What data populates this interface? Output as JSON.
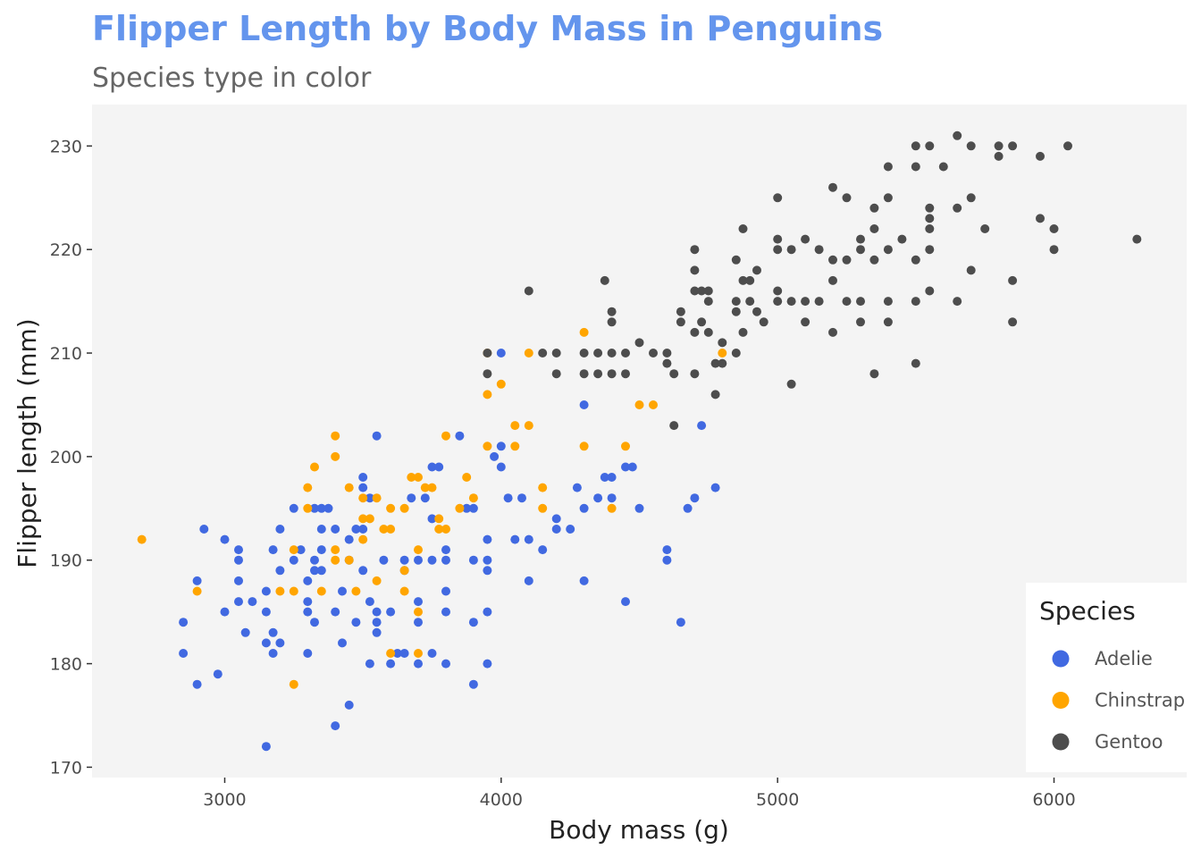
{
  "chart_data": {
    "type": "scatter",
    "title": "Flipper Length by Body Mass in Penguins",
    "subtitle": "Species type in color",
    "xlabel": "Body mass (g)",
    "ylabel": "Flipper length (mm)",
    "xlim": [
      2520,
      6480
    ],
    "ylim": [
      169,
      234
    ],
    "xticks": [
      3000,
      4000,
      5000,
      6000
    ],
    "yticks": [
      170,
      180,
      190,
      200,
      210,
      220,
      230
    ],
    "grid": false,
    "panel_background": "#f4f4f4",
    "legend": {
      "title": "Species",
      "position": "right-inside-bottom"
    },
    "series": [
      {
        "name": "Adelie",
        "color": "#4169E1",
        "points": [
          [
            2850,
            184
          ],
          [
            2850,
            181
          ],
          [
            2900,
            188
          ],
          [
            2900,
            178
          ],
          [
            2925,
            193
          ],
          [
            2975,
            179
          ],
          [
            3000,
            192
          ],
          [
            3000,
            185
          ],
          [
            3050,
            191
          ],
          [
            3050,
            190
          ],
          [
            3050,
            188
          ],
          [
            3050,
            186
          ],
          [
            3075,
            183
          ],
          [
            3100,
            186
          ],
          [
            3150,
            187
          ],
          [
            3150,
            185
          ],
          [
            3150,
            182
          ],
          [
            3150,
            172
          ],
          [
            3175,
            191
          ],
          [
            3175,
            183
          ],
          [
            3175,
            181
          ],
          [
            3200,
            193
          ],
          [
            3200,
            189
          ],
          [
            3200,
            182
          ],
          [
            3250,
            195
          ],
          [
            3250,
            190
          ],
          [
            3275,
            191
          ],
          [
            3300,
            188
          ],
          [
            3300,
            186
          ],
          [
            3300,
            185
          ],
          [
            3300,
            181
          ],
          [
            3325,
            190
          ],
          [
            3325,
            189
          ],
          [
            3325,
            184
          ],
          [
            3325,
            195
          ],
          [
            3350,
            195
          ],
          [
            3350,
            193
          ],
          [
            3350,
            191
          ],
          [
            3350,
            189
          ],
          [
            3375,
            195
          ],
          [
            3400,
            193
          ],
          [
            3400,
            185
          ],
          [
            3400,
            174
          ],
          [
            3425,
            187
          ],
          [
            3425,
            182
          ],
          [
            3450,
            192
          ],
          [
            3450,
            190
          ],
          [
            3450,
            176
          ],
          [
            3475,
            193
          ],
          [
            3475,
            184
          ],
          [
            3500,
            198
          ],
          [
            3500,
            197
          ],
          [
            3500,
            193
          ],
          [
            3500,
            189
          ],
          [
            3525,
            196
          ],
          [
            3525,
            186
          ],
          [
            3525,
            180
          ],
          [
            3550,
            202
          ],
          [
            3550,
            184
          ],
          [
            3550,
            183
          ],
          [
            3550,
            185
          ],
          [
            3575,
            190
          ],
          [
            3600,
            185
          ],
          [
            3600,
            180
          ],
          [
            3625,
            181
          ],
          [
            3650,
            190
          ],
          [
            3650,
            189
          ],
          [
            3650,
            181
          ],
          [
            3675,
            196
          ],
          [
            3700,
            190
          ],
          [
            3700,
            186
          ],
          [
            3700,
            184
          ],
          [
            3700,
            180
          ],
          [
            3725,
            196
          ],
          [
            3750,
            199
          ],
          [
            3750,
            194
          ],
          [
            3750,
            190
          ],
          [
            3750,
            181
          ],
          [
            3775,
            199
          ],
          [
            3800,
            191
          ],
          [
            3800,
            190
          ],
          [
            3800,
            187
          ],
          [
            3800,
            185
          ],
          [
            3800,
            180
          ],
          [
            3850,
            202
          ],
          [
            3875,
            195
          ],
          [
            3900,
            195
          ],
          [
            3900,
            190
          ],
          [
            3900,
            184
          ],
          [
            3900,
            178
          ],
          [
            3950,
            192
          ],
          [
            3950,
            190
          ],
          [
            3950,
            189
          ],
          [
            3950,
            185
          ],
          [
            3950,
            180
          ],
          [
            3975,
            200
          ],
          [
            4000,
            210
          ],
          [
            4000,
            201
          ],
          [
            4000,
            199
          ],
          [
            4025,
            196
          ],
          [
            4050,
            192
          ],
          [
            4075,
            196
          ],
          [
            4100,
            192
          ],
          [
            4100,
            188
          ],
          [
            4150,
            191
          ],
          [
            4200,
            194
          ],
          [
            4200,
            193
          ],
          [
            4250,
            193
          ],
          [
            4275,
            197
          ],
          [
            4300,
            205
          ],
          [
            4300,
            195
          ],
          [
            4300,
            188
          ],
          [
            4350,
            196
          ],
          [
            4375,
            198
          ],
          [
            4400,
            198
          ],
          [
            4400,
            196
          ],
          [
            4450,
            199
          ],
          [
            4450,
            186
          ],
          [
            4475,
            199
          ],
          [
            4500,
            195
          ],
          [
            4600,
            191
          ],
          [
            4600,
            190
          ],
          [
            4650,
            184
          ],
          [
            4675,
            195
          ],
          [
            4700,
            196
          ],
          [
            4725,
            203
          ],
          [
            4775,
            197
          ]
        ]
      },
      {
        "name": "Chinstrap",
        "color": "#FFA500",
        "points": [
          [
            2700,
            192
          ],
          [
            2900,
            187
          ],
          [
            3200,
            187
          ],
          [
            3250,
            191
          ],
          [
            3250,
            187
          ],
          [
            3250,
            178
          ],
          [
            3300,
            197
          ],
          [
            3300,
            195
          ],
          [
            3325,
            199
          ],
          [
            3350,
            187
          ],
          [
            3400,
            202
          ],
          [
            3400,
            200
          ],
          [
            3400,
            191
          ],
          [
            3400,
            190
          ],
          [
            3450,
            197
          ],
          [
            3450,
            190
          ],
          [
            3475,
            187
          ],
          [
            3500,
            196
          ],
          [
            3500,
            194
          ],
          [
            3500,
            192
          ],
          [
            3525,
            194
          ],
          [
            3550,
            188
          ],
          [
            3550,
            196
          ],
          [
            3575,
            193
          ],
          [
            3600,
            195
          ],
          [
            3600,
            193
          ],
          [
            3600,
            181
          ],
          [
            3650,
            195
          ],
          [
            3650,
            189
          ],
          [
            3650,
            187
          ],
          [
            3675,
            198
          ],
          [
            3700,
            198
          ],
          [
            3700,
            191
          ],
          [
            3700,
            185
          ],
          [
            3700,
            181
          ],
          [
            3725,
            197
          ],
          [
            3750,
            197
          ],
          [
            3775,
            194
          ],
          [
            3775,
            193
          ],
          [
            3800,
            202
          ],
          [
            3800,
            193
          ],
          [
            3850,
            195
          ],
          [
            3875,
            198
          ],
          [
            3900,
            196
          ],
          [
            3950,
            210
          ],
          [
            3950,
            206
          ],
          [
            3950,
            201
          ],
          [
            4000,
            207
          ],
          [
            4050,
            203
          ],
          [
            4050,
            201
          ],
          [
            4100,
            210
          ],
          [
            4100,
            203
          ],
          [
            4150,
            197
          ],
          [
            4150,
            195
          ],
          [
            4300,
            212
          ],
          [
            4300,
            201
          ],
          [
            4400,
            195
          ],
          [
            4450,
            201
          ],
          [
            4500,
            205
          ],
          [
            4550,
            205
          ],
          [
            4800,
            210
          ]
        ]
      },
      {
        "name": "Gentoo",
        "color": "#4D4D4D",
        "points": [
          [
            3950,
            210
          ],
          [
            3950,
            208
          ],
          [
            4100,
            216
          ],
          [
            4150,
            210
          ],
          [
            4200,
            210
          ],
          [
            4200,
            208
          ],
          [
            4300,
            210
          ],
          [
            4300,
            208
          ],
          [
            4350,
            210
          ],
          [
            4350,
            208
          ],
          [
            4375,
            217
          ],
          [
            4400,
            214
          ],
          [
            4400,
            213
          ],
          [
            4400,
            210
          ],
          [
            4400,
            208
          ],
          [
            4450,
            210
          ],
          [
            4450,
            208
          ],
          [
            4500,
            211
          ],
          [
            4550,
            210
          ],
          [
            4600,
            210
          ],
          [
            4600,
            209
          ],
          [
            4625,
            208
          ],
          [
            4625,
            203
          ],
          [
            4650,
            213
          ],
          [
            4650,
            214
          ],
          [
            4700,
            212
          ],
          [
            4700,
            208
          ],
          [
            4700,
            216
          ],
          [
            4700,
            218
          ],
          [
            4700,
            220
          ],
          [
            4725,
            216
          ],
          [
            4725,
            213
          ],
          [
            4750,
            216
          ],
          [
            4750,
            215
          ],
          [
            4750,
            212
          ],
          [
            4775,
            209
          ],
          [
            4775,
            206
          ],
          [
            4800,
            211
          ],
          [
            4800,
            209
          ],
          [
            4850,
            219
          ],
          [
            4850,
            215
          ],
          [
            4850,
            214
          ],
          [
            4850,
            210
          ],
          [
            4875,
            222
          ],
          [
            4875,
            217
          ],
          [
            4875,
            212
          ],
          [
            4900,
            217
          ],
          [
            4900,
            215
          ],
          [
            4925,
            218
          ],
          [
            4925,
            214
          ],
          [
            4950,
            213
          ],
          [
            5000,
            225
          ],
          [
            5000,
            221
          ],
          [
            5000,
            220
          ],
          [
            5000,
            216
          ],
          [
            5000,
            215
          ],
          [
            5050,
            220
          ],
          [
            5050,
            215
          ],
          [
            5050,
            207
          ],
          [
            5100,
            221
          ],
          [
            5100,
            215
          ],
          [
            5100,
            213
          ],
          [
            5150,
            220
          ],
          [
            5150,
            215
          ],
          [
            5200,
            226
          ],
          [
            5200,
            219
          ],
          [
            5200,
            217
          ],
          [
            5200,
            212
          ],
          [
            5250,
            225
          ],
          [
            5250,
            219
          ],
          [
            5250,
            215
          ],
          [
            5300,
            221
          ],
          [
            5300,
            220
          ],
          [
            5300,
            215
          ],
          [
            5300,
            213
          ],
          [
            5350,
            224
          ],
          [
            5350,
            222
          ],
          [
            5350,
            219
          ],
          [
            5350,
            208
          ],
          [
            5400,
            228
          ],
          [
            5400,
            225
          ],
          [
            5400,
            220
          ],
          [
            5400,
            215
          ],
          [
            5400,
            213
          ],
          [
            5450,
            221
          ],
          [
            5500,
            230
          ],
          [
            5500,
            228
          ],
          [
            5500,
            219
          ],
          [
            5500,
            215
          ],
          [
            5500,
            209
          ],
          [
            5550,
            230
          ],
          [
            5550,
            224
          ],
          [
            5550,
            222
          ],
          [
            5550,
            220
          ],
          [
            5550,
            216
          ],
          [
            5550,
            223
          ],
          [
            5600,
            228
          ],
          [
            5650,
            231
          ],
          [
            5650,
            224
          ],
          [
            5650,
            215
          ],
          [
            5700,
            230
          ],
          [
            5700,
            225
          ],
          [
            5700,
            218
          ],
          [
            5750,
            222
          ],
          [
            5800,
            230
          ],
          [
            5800,
            229
          ],
          [
            5850,
            230
          ],
          [
            5850,
            217
          ],
          [
            5850,
            213
          ],
          [
            5950,
            229
          ],
          [
            5950,
            223
          ],
          [
            6000,
            222
          ],
          [
            6000,
            220
          ],
          [
            6050,
            230
          ],
          [
            6300,
            221
          ]
        ]
      }
    ]
  }
}
